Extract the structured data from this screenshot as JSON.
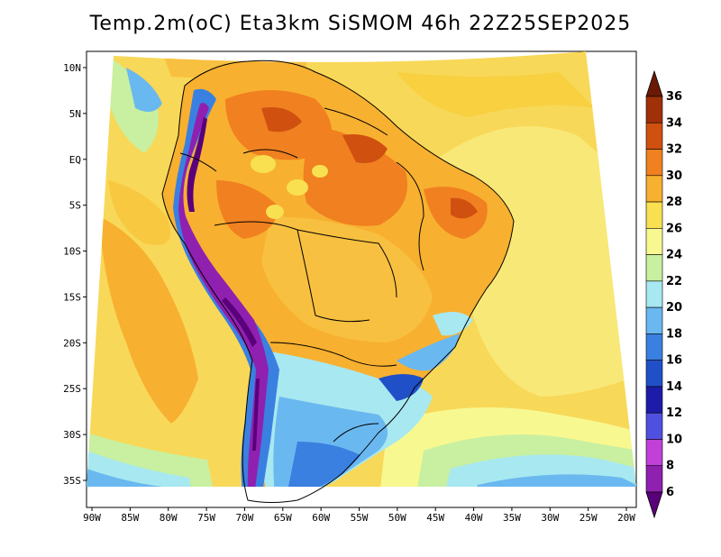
{
  "title": "Temp.2m(oC) Eta3km SiSMOM 46h 22Z25SEP2025",
  "map": {
    "lon_ticks": [
      "90W",
      "85W",
      "80W",
      "75W",
      "70W",
      "65W",
      "60W",
      "55W",
      "50W",
      "45W",
      "40W",
      "35W",
      "30W",
      "25W",
      "20W"
    ],
    "lat_ticks": [
      "10N",
      "5N",
      "EQ",
      "5S",
      "10S",
      "15S",
      "20S",
      "25S",
      "30S",
      "35S"
    ]
  },
  "colorbar": {
    "labels": [
      "6",
      "8",
      "10",
      "12",
      "14",
      "16",
      "18",
      "20",
      "22",
      "24",
      "26",
      "28",
      "30",
      "32",
      "34",
      "36"
    ],
    "colors": [
      "#5a007a",
      "#9020b0",
      "#c040d8",
      "#5050e0",
      "#1c1ca8",
      "#2050c8",
      "#3a80e0",
      "#6ab8f0",
      "#a8e8f0",
      "#c8f0a0",
      "#f8f890",
      "#f8e050",
      "#f8b030",
      "#f08020",
      "#d05010",
      "#a03008",
      "#6a1a04"
    ]
  }
}
